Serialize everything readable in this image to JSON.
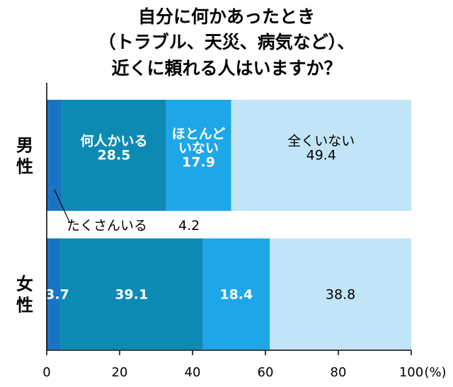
{
  "chart_data": {
    "type": "bar",
    "orientation": "horizontal",
    "stacked": true,
    "title_lines": [
      "自分に何かあったとき",
      "（トラブル、天災、病気など）、",
      "近くに頼れる人はいますか？"
    ],
    "categories": [
      "男性",
      "女性"
    ],
    "series": [
      {
        "name": "たくさんいる",
        "values": [
          4.2,
          3.7
        ],
        "color": "#1a74c4"
      },
      {
        "name": "何人かいる",
        "values": [
          28.5,
          39.1
        ],
        "color": "#0d8ab4"
      },
      {
        "name": "ほとんどいない",
        "values": [
          17.9,
          18.4
        ],
        "color": "#1ea7e8"
      },
      {
        "name": "全くいない",
        "values": [
          49.4,
          38.8
        ],
        "color": "#c2e4f7"
      }
    ],
    "segment_labels": [
      [
        {
          "name": "",
          "value": ""
        },
        {
          "name": "何人かいる",
          "value": "28.5"
        },
        {
          "name": "ほとんどいない",
          "name_lines": [
            "ほとんど",
            "いない"
          ],
          "value": "17.9"
        },
        {
          "name": "全くいない",
          "value": "49.4"
        }
      ],
      [
        {
          "name": "",
          "value": "3.7"
        },
        {
          "name": "",
          "value": "39.1"
        },
        {
          "name": "",
          "value": "18.4"
        },
        {
          "name": "",
          "value": "38.8"
        }
      ]
    ],
    "callout": {
      "text": "たくさんいる",
      "value": "4.2"
    },
    "x_ticks": [
      "0",
      "20",
      "40",
      "60",
      "80",
      "100"
    ],
    "x_unit": "(%)",
    "xlim": [
      0,
      100
    ],
    "grid": false
  }
}
